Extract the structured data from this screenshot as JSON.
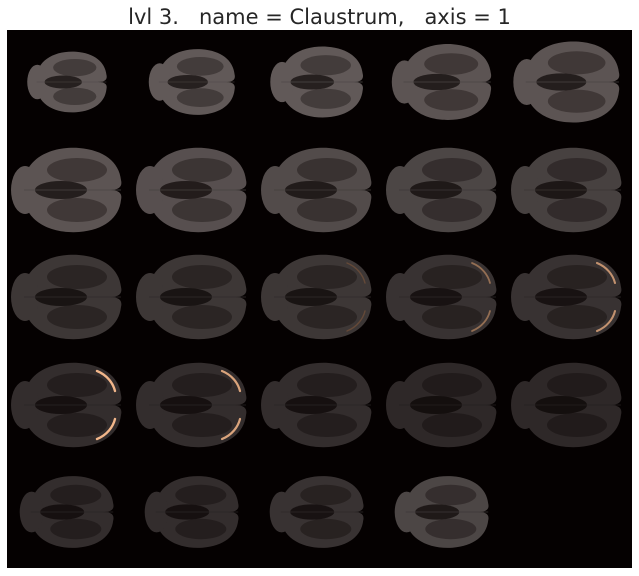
{
  "title": "lvl 3.   name = Claustrum,   axis = 1",
  "colors": {
    "background": "#050101",
    "tissue_light": "#6b6362",
    "tissue_mid": "#4a4241",
    "tissue_dark": "#2a2322",
    "highlight": "#f2b68a"
  },
  "slices": [
    {
      "index": 1,
      "tissue_level": 0.9,
      "highlight_level": 0
    },
    {
      "index": 2,
      "tissue_level": 0.9,
      "highlight_level": 0
    },
    {
      "index": 3,
      "tissue_level": 0.9,
      "highlight_level": 0
    },
    {
      "index": 4,
      "tissue_level": 0.85,
      "highlight_level": 0
    },
    {
      "index": 5,
      "tissue_level": 0.85,
      "highlight_level": 0
    },
    {
      "index": 6,
      "tissue_level": 0.85,
      "highlight_level": 0
    },
    {
      "index": 7,
      "tissue_level": 0.8,
      "highlight_level": 0
    },
    {
      "index": 8,
      "tissue_level": 0.75,
      "highlight_level": 0
    },
    {
      "index": 9,
      "tissue_level": 0.7,
      "highlight_level": 0
    },
    {
      "index": 10,
      "tissue_level": 0.65,
      "highlight_level": 0
    },
    {
      "index": 11,
      "tissue_level": 0.55,
      "highlight_level": 0
    },
    {
      "index": 12,
      "tissue_level": 0.55,
      "highlight_level": 0
    },
    {
      "index": 13,
      "tissue_level": 0.55,
      "highlight_level": 0.4
    },
    {
      "index": 14,
      "tissue_level": 0.5,
      "highlight_level": 0.6
    },
    {
      "index": 15,
      "tissue_level": 0.5,
      "highlight_level": 0.8
    },
    {
      "index": 16,
      "tissue_level": 0.45,
      "highlight_level": 1
    },
    {
      "index": 17,
      "tissue_level": 0.45,
      "highlight_level": 0.9
    },
    {
      "index": 18,
      "tissue_level": 0.45,
      "highlight_level": 0
    },
    {
      "index": 19,
      "tissue_level": 0.4,
      "highlight_level": 0
    },
    {
      "index": 20,
      "tissue_level": 0.4,
      "highlight_level": 0
    },
    {
      "index": 21,
      "tissue_level": 0.45,
      "highlight_level": 0
    },
    {
      "index": 22,
      "tissue_level": 0.45,
      "highlight_level": 0
    },
    {
      "index": 23,
      "tissue_level": 0.5,
      "highlight_level": 0
    },
    {
      "index": 24,
      "tissue_level": 0.7,
      "highlight_level": 0
    },
    {
      "index": 25,
      "tissue_level": 0,
      "highlight_level": 0
    }
  ]
}
